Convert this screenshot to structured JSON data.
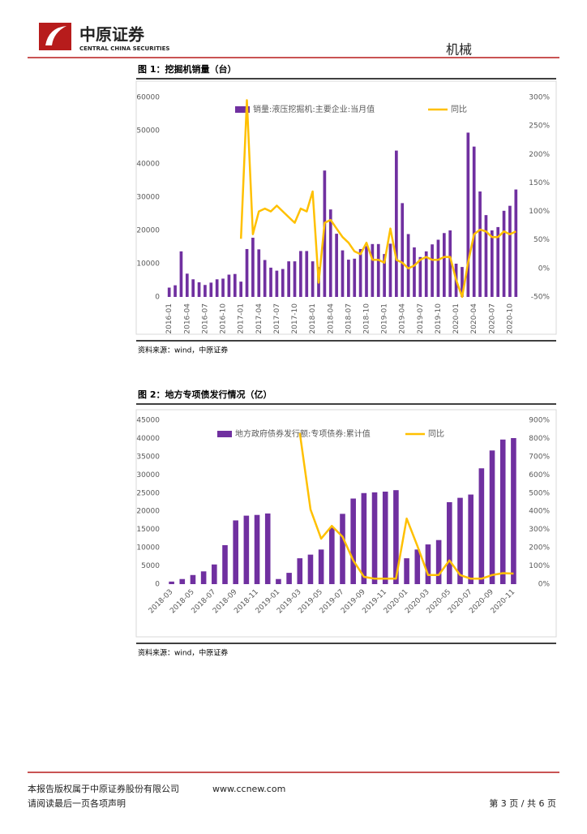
{
  "header": {
    "brand": "中原证券",
    "brand_en": "CENTRAL CHINA SECURITIES",
    "sector": "机械"
  },
  "footer": {
    "copyright": "本报告版权属于中原证券股份有限公司",
    "website": "www.ccnew.com",
    "notice": "请阅读最后一页各项声明",
    "page": "第 3 页 / 共 6 页"
  },
  "chart_data": [
    {
      "type": "bar",
      "title": "图 1：挖掘机销量（台）",
      "source": "资料来源：wind，中原证券",
      "categories": [
        "2016-01",
        null,
        null,
        "2016-04",
        null,
        null,
        "2016-07",
        null,
        null,
        "2016-10",
        null,
        null,
        "2017-01",
        null,
        null,
        "2017-04",
        null,
        null,
        "2017-07",
        null,
        null,
        "2017-10",
        null,
        null,
        "2018-01",
        null,
        null,
        "2018-04",
        null,
        null,
        "2018-07",
        null,
        null,
        "2018-10",
        null,
        null,
        "2019-01",
        null,
        null,
        "2019-04",
        null,
        null,
        "2019-07",
        null,
        null,
        "2019-10",
        null,
        null,
        "2020-01",
        null,
        null,
        "2020-04",
        null,
        null,
        "2020-07",
        null,
        null,
        "2020-10",
        null
      ],
      "series": [
        {
          "name": "销量:液压挖掘机:主要企业:当月值",
          "color": "#7030a0",
          "axis": "y",
          "values": [
            2800,
            3500,
            13700,
            7000,
            5300,
            4400,
            3600,
            4300,
            5300,
            5500,
            6700,
            6900,
            4600,
            14400,
            17800,
            14300,
            11100,
            8800,
            7900,
            8400,
            10700,
            10700,
            13800,
            13800,
            10700,
            9000,
            38000,
            26300,
            19000,
            14000,
            11200,
            11500,
            14400,
            15300,
            15900,
            15900,
            12900,
            16000,
            44000,
            28200,
            18900,
            14900,
            12000,
            13700,
            15800,
            17200,
            19200,
            20000,
            10000,
            9000,
            49400,
            45200,
            31700,
            24600,
            20000,
            21000,
            25900,
            27400,
            32300
          ]
        },
        {
          "name": "同比",
          "color": "#ffc000",
          "axis": "y2",
          "values": [
            null,
            null,
            null,
            null,
            null,
            null,
            null,
            null,
            null,
            null,
            null,
            null,
            52,
            295,
            60,
            100,
            105,
            100,
            110,
            100,
            90,
            80,
            105,
            100,
            135,
            -25,
            80,
            85,
            70,
            55,
            45,
            30,
            25,
            45,
            15,
            15,
            10,
            70,
            15,
            10,
            0,
            5,
            15,
            20,
            15,
            15,
            20,
            20,
            -20,
            -50,
            10,
            60,
            68,
            65,
            55,
            55,
            65,
            60,
            65
          ]
        }
      ],
      "ylim": [
        0,
        60000
      ],
      "yticks": [
        0,
        10000,
        20000,
        30000,
        40000,
        50000,
        60000
      ],
      "y2lim": [
        -50,
        300
      ],
      "y2ticks": [
        {
          "value": -50,
          "label": "-50%"
        },
        {
          "value": 0,
          "label": "0%"
        },
        {
          "value": 50,
          "label": "50%"
        },
        {
          "value": 100,
          "label": "100%"
        },
        {
          "value": 150,
          "label": "150%"
        },
        {
          "value": 200,
          "label": "200%"
        },
        {
          "value": 250,
          "label": "250%"
        },
        {
          "value": 300,
          "label": "300%"
        }
      ]
    },
    {
      "type": "bar",
      "title": "图 2：地方专项债发行情况（亿）",
      "source": "资料来源：wind，中原证券",
      "categories": [
        "2018-03",
        null,
        "2018-05",
        null,
        "2018-07",
        null,
        "2018-09",
        null,
        "2018-11",
        null,
        "2019-01",
        null,
        "2019-03",
        null,
        "2019-05",
        null,
        "2019-07",
        null,
        "2019-09",
        null,
        "2019-11",
        null,
        "2020-01",
        null,
        "2020-03",
        null,
        "2020-05",
        null,
        "2020-07",
        null,
        "2020-09",
        null,
        "2020-11"
      ],
      "series": [
        {
          "name": "地方政府债券发行额:专项债券:累计值",
          "color": "#7030a0",
          "axis": "y",
          "values": [
            700,
            1400,
            2500,
            3500,
            5400,
            10700,
            17500,
            18800,
            19000,
            19400,
            1400,
            3100,
            7100,
            8100,
            9500,
            15500,
            19300,
            23500,
            25000,
            25200,
            25400,
            25800,
            7100,
            9500,
            10900,
            12100,
            22500,
            23700,
            24600,
            31800,
            36700,
            39700,
            40100
          ]
        },
        {
          "name": "同比",
          "color": "#ffc000",
          "axis": "y2",
          "values": [
            null,
            null,
            null,
            null,
            null,
            null,
            null,
            null,
            null,
            null,
            null,
            null,
            830,
            410,
            250,
            320,
            260,
            130,
            40,
            30,
            30,
            30,
            360,
            210,
            50,
            50,
            130,
            50,
            30,
            30,
            50,
            60,
            58
          ]
        }
      ],
      "ylim": [
        0,
        45000
      ],
      "yticks": [
        0,
        5000,
        10000,
        15000,
        20000,
        25000,
        30000,
        35000,
        40000,
        45000
      ],
      "y2lim": [
        0,
        900
      ],
      "y2ticks": [
        {
          "value": 0,
          "label": "0%"
        },
        {
          "value": 100,
          "label": "100%"
        },
        {
          "value": 200,
          "label": "200%"
        },
        {
          "value": 300,
          "label": "300%"
        },
        {
          "value": 400,
          "label": "400%"
        },
        {
          "value": 500,
          "label": "500%"
        },
        {
          "value": 600,
          "label": "600%"
        },
        {
          "value": 700,
          "label": "700%"
        },
        {
          "value": 800,
          "label": "800%"
        },
        {
          "value": 900,
          "label": "900%"
        }
      ]
    }
  ]
}
